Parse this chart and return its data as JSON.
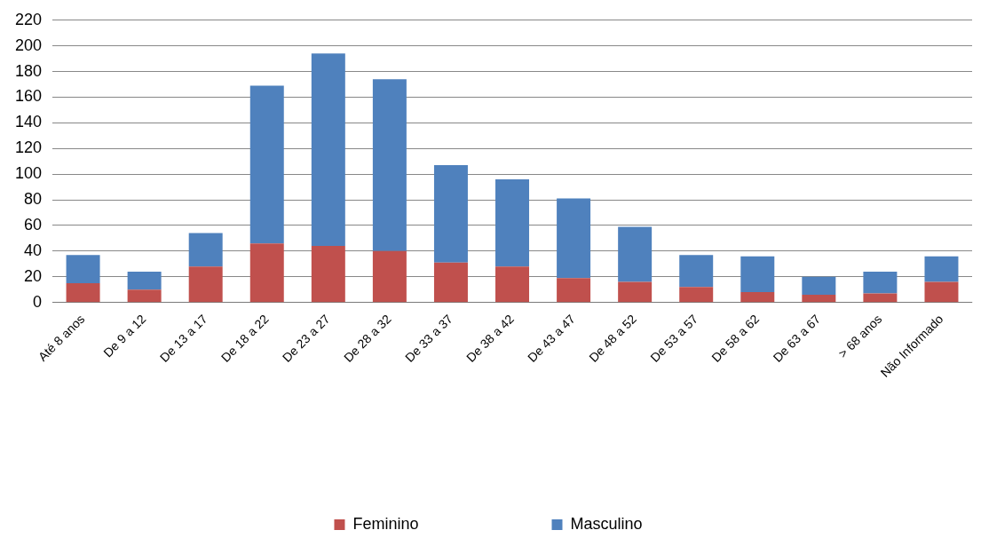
{
  "chart_data": {
    "type": "bar",
    "stacked": true,
    "categories": [
      "Até 8 anos",
      "De 9 a 12",
      "De 13 a 17",
      "De 18 a 22",
      "De 23 a 27",
      "De 28 a 32",
      "De 33 a 37",
      "De 38 a 42",
      "De 43 a 47",
      "De 48 a 52",
      "De 53 a 57",
      "De 58 a 62",
      "De 63 a 67",
      "> 68 anos",
      "Não Informado"
    ],
    "series": [
      {
        "name": "Feminino",
        "color": "#c0504d",
        "values": [
          15,
          10,
          28,
          46,
          44,
          40,
          31,
          28,
          19,
          16,
          12,
          8,
          6,
          7,
          16
        ]
      },
      {
        "name": "Masculino",
        "color": "#4f81bd",
        "values": [
          22,
          14,
          26,
          123,
          150,
          134,
          76,
          68,
          62,
          43,
          25,
          28,
          14,
          17,
          20
        ]
      }
    ],
    "ylim": [
      0,
      220
    ],
    "yticks": [
      0,
      20,
      40,
      60,
      80,
      100,
      120,
      140,
      160,
      180,
      200,
      220
    ],
    "grid": "y",
    "legend": "bottom"
  }
}
